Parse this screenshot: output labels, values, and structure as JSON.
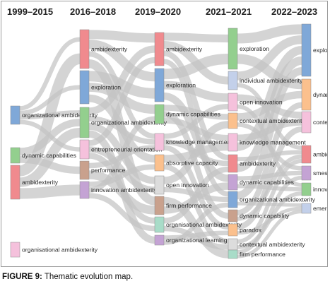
{
  "periods": [
    "1999–2015",
    "2016–2018",
    "2019–2020",
    "2021–2021",
    "2022–2023"
  ],
  "caption": {
    "label": "FIGURE 9:",
    "text": " Thematic evolution map."
  },
  "columns": [
    [
      {
        "id": "a1",
        "label": "organizational ambidexterity",
        "color": "#7fa8d8"
      },
      {
        "id": "a2",
        "label": "dynamic capabilities",
        "color": "#93cf8e"
      },
      {
        "id": "a3",
        "label": "ambidexterity",
        "color": "#f08a8e"
      },
      {
        "id": "a4",
        "label": "organisational ambidexterity",
        "color": "#f5c1dc"
      }
    ],
    [
      {
        "id": "b1",
        "label": "ambidexterity",
        "color": "#f08a8e"
      },
      {
        "id": "b2",
        "label": "exploration",
        "color": "#7fa8d8"
      },
      {
        "id": "b3",
        "label": "organizational ambidexterity",
        "color": "#93cf8e"
      },
      {
        "id": "b4",
        "label": "entrepreneurial orientation",
        "color": "#f5c1dc"
      },
      {
        "id": "b5",
        "label": "performance",
        "color": "#c9a18d"
      },
      {
        "id": "b6",
        "label": "innovation ambidexterity",
        "color": "#c4a3d4"
      }
    ],
    [
      {
        "id": "c1",
        "label": "ambidexterity",
        "color": "#f08a8e"
      },
      {
        "id": "c2",
        "label": "exploration",
        "color": "#7fa8d8"
      },
      {
        "id": "c3",
        "label": "dynamic capabilities",
        "color": "#93cf8e"
      },
      {
        "id": "c4",
        "label": "knowledge management",
        "color": "#f5c1dc"
      },
      {
        "id": "c5",
        "label": "absorptive capacity",
        "color": "#fbc08d"
      },
      {
        "id": "c6",
        "label": "open innovation",
        "color": "#dcdcdc"
      },
      {
        "id": "c7",
        "label": "firm performance",
        "color": "#c9a18d"
      },
      {
        "id": "c8",
        "label": "organisational ambidexterity",
        "color": "#a8dcc8"
      },
      {
        "id": "c9",
        "label": "organizational learning",
        "color": "#c4a3d4"
      }
    ],
    [
      {
        "id": "d1",
        "label": "exploration",
        "color": "#93cf8e"
      },
      {
        "id": "d2",
        "label": "individual ambidexterity",
        "color": "#c3d0ea"
      },
      {
        "id": "d3",
        "label": "open innovation",
        "color": "#f5c1dc"
      },
      {
        "id": "d4",
        "label": "contextual ambidexterity",
        "color": "#fbc08d"
      },
      {
        "id": "d5",
        "label": "knowledge management",
        "color": "#f5c1dc"
      },
      {
        "id": "d6",
        "label": "ambidexterity",
        "color": "#f08a8e"
      },
      {
        "id": "d7",
        "label": "dynamic capabilities",
        "color": "#c4a3d4"
      },
      {
        "id": "d8",
        "label": "organizational ambidexterity",
        "color": "#7fa8d8"
      },
      {
        "id": "d9",
        "label": "dynamic capability",
        "color": "#c9a18d"
      },
      {
        "id": "d10",
        "label": "paradox",
        "color": "#fbc08d"
      },
      {
        "id": "d11",
        "label": "contextual ambidexterity",
        "color": "#dcdcdc"
      },
      {
        "id": "d12",
        "label": "firm performance",
        "color": "#a8dcc8"
      }
    ],
    [
      {
        "id": "e1",
        "label": "exploitation",
        "color": "#7fa8d8"
      },
      {
        "id": "e2",
        "label": "dynamic capability",
        "color": "#fbc08d"
      },
      {
        "id": "e3",
        "label": "contextual ambidexterity",
        "color": "#f5c1dc"
      },
      {
        "id": "e4",
        "label": "ambidexterity",
        "color": "#f08a8e"
      },
      {
        "id": "e5",
        "label": "smes",
        "color": "#c4a3d4"
      },
      {
        "id": "e6",
        "label": "innovation ambidexterity",
        "color": "#93cf8e"
      },
      {
        "id": "e7",
        "label": "emerging markets",
        "color": "#c3d0ea"
      }
    ]
  ],
  "links": [
    [
      "a1",
      "b1"
    ],
    [
      "a1",
      "b2"
    ],
    [
      "a1",
      "b3"
    ],
    [
      "a1",
      "b4"
    ],
    [
      "a2",
      "b3"
    ],
    [
      "a2",
      "b5"
    ],
    [
      "a3",
      "b1"
    ],
    [
      "a3",
      "b3"
    ],
    [
      "a3",
      "b6"
    ],
    [
      "b1",
      "c1"
    ],
    [
      "b1",
      "c2"
    ],
    [
      "b1",
      "c4"
    ],
    [
      "b1",
      "c7"
    ],
    [
      "b2",
      "c2"
    ],
    [
      "b2",
      "c3"
    ],
    [
      "b2",
      "c5"
    ],
    [
      "b3",
      "c1"
    ],
    [
      "b3",
      "c4"
    ],
    [
      "b3",
      "c6"
    ],
    [
      "b3",
      "c9"
    ],
    [
      "b4",
      "c1"
    ],
    [
      "b4",
      "c6"
    ],
    [
      "b4",
      "c8"
    ],
    [
      "b5",
      "c4"
    ],
    [
      "b5",
      "c7"
    ],
    [
      "b6",
      "c5"
    ],
    [
      "b6",
      "c3"
    ],
    [
      "b6",
      "c8"
    ],
    [
      "c1",
      "d1"
    ],
    [
      "c1",
      "d2"
    ],
    [
      "c1",
      "d6"
    ],
    [
      "c1",
      "d8"
    ],
    [
      "c2",
      "d1"
    ],
    [
      "c2",
      "d3"
    ],
    [
      "c2",
      "d7"
    ],
    [
      "c3",
      "d4"
    ],
    [
      "c3",
      "d9"
    ],
    [
      "c3",
      "d5"
    ],
    [
      "c4",
      "d3"
    ],
    [
      "c4",
      "d6"
    ],
    [
      "c4",
      "d10"
    ],
    [
      "c5",
      "d5"
    ],
    [
      "c5",
      "d11"
    ],
    [
      "c6",
      "d4"
    ],
    [
      "c6",
      "d8"
    ],
    [
      "c7",
      "d12"
    ],
    [
      "c7",
      "d7"
    ],
    [
      "c8",
      "d6"
    ],
    [
      "c8",
      "d11"
    ],
    [
      "c9",
      "d10"
    ],
    [
      "c9",
      "d8"
    ],
    [
      "d1",
      "e1"
    ],
    [
      "d1",
      "e2"
    ],
    [
      "d2",
      "e1"
    ],
    [
      "d2",
      "e4"
    ],
    [
      "d3",
      "e3"
    ],
    [
      "d3",
      "e6"
    ],
    [
      "d4",
      "e2"
    ],
    [
      "d4",
      "e5"
    ],
    [
      "d5",
      "e3"
    ],
    [
      "d5",
      "e1"
    ],
    [
      "d6",
      "e4"
    ],
    [
      "d6",
      "e1"
    ],
    [
      "d7",
      "e5"
    ],
    [
      "d7",
      "e6"
    ],
    [
      "d8",
      "e1"
    ],
    [
      "d8",
      "e7"
    ],
    [
      "d9",
      "e2"
    ],
    [
      "d9",
      "e4"
    ],
    [
      "d10",
      "e3"
    ],
    [
      "d10",
      "e7"
    ],
    [
      "d11",
      "e4"
    ],
    [
      "d11",
      "e6"
    ],
    [
      "d12",
      "e5"
    ],
    [
      "d12",
      "e7"
    ]
  ]
}
